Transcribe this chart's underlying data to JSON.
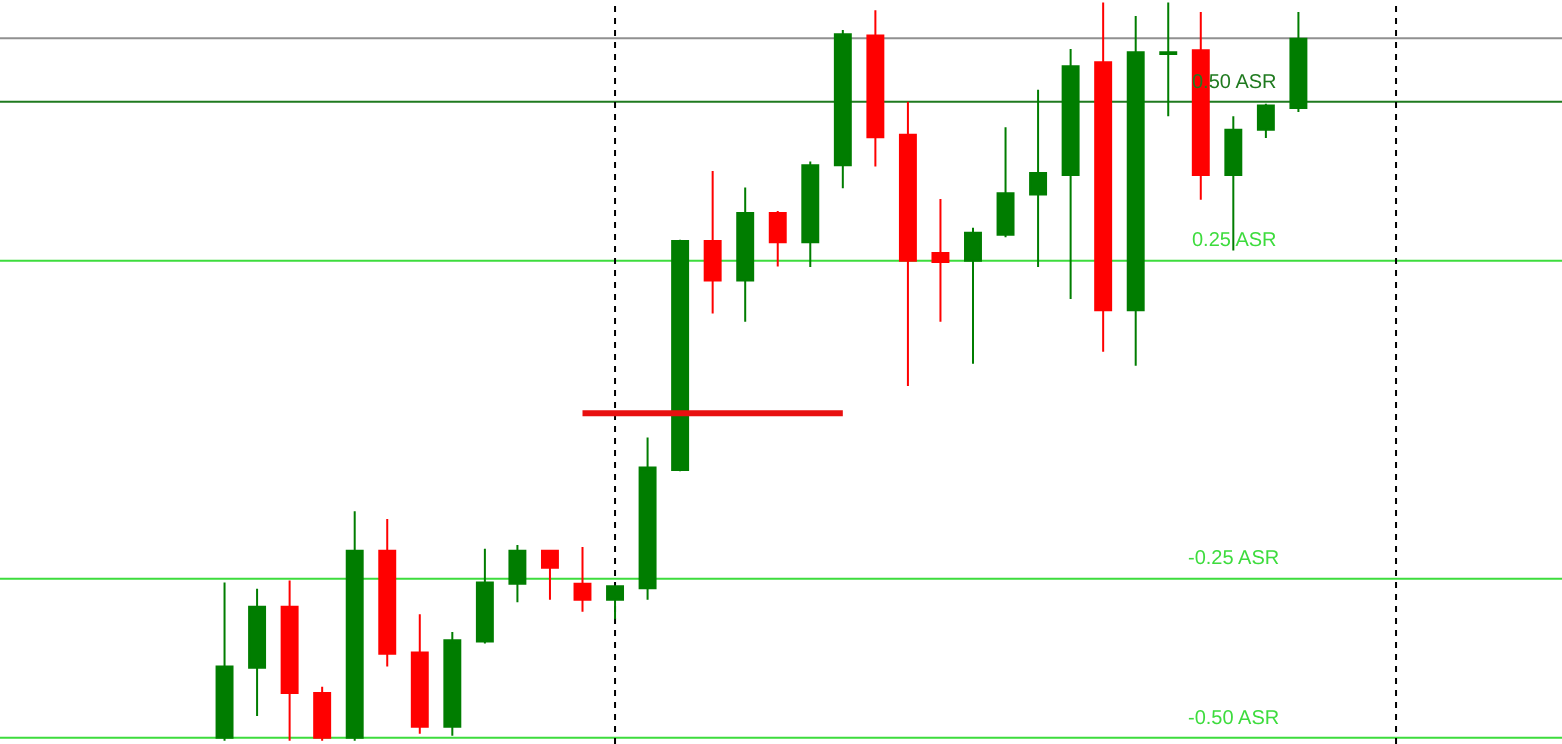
{
  "chart_data": {
    "type": "candlestick",
    "categories": [
      null,
      null,
      null,
      null,
      null,
      null,
      null,
      null,
      null,
      null,
      null,
      null,
      null,
      null,
      null,
      null,
      null,
      null,
      null,
      null,
      null,
      null,
      null,
      null,
      null,
      null,
      null,
      null,
      null,
      null,
      null,
      null,
      null,
      null
    ],
    "ohlc": [
      [
        -0.5,
        -0.256,
        -0.505,
        -0.388
      ],
      [
        -0.39,
        -0.266,
        -0.466,
        -0.294
      ],
      [
        -0.294,
        -0.253,
        -0.505,
        -0.43
      ],
      [
        -0.43,
        -0.42,
        -0.505,
        -0.5
      ],
      [
        -0.5,
        -0.144,
        -0.505,
        -0.206
      ],
      [
        -0.206,
        -0.156,
        -0.388,
        -0.368
      ],
      [
        -0.366,
        -0.306,
        -0.494,
        -0.483
      ],
      [
        -0.483,
        -0.334,
        -0.497,
        -0.347
      ],
      [
        -0.349,
        -0.203,
        -0.352,
        -0.256
      ],
      [
        -0.258,
        -0.197,
        -0.287,
        -0.206
      ],
      [
        -0.206,
        -0.206,
        -0.283,
        -0.233
      ],
      [
        -0.258,
        -0.2,
        -0.302,
        -0.283
      ],
      [
        -0.283,
        -0.262,
        -0.314,
        -0.262
      ],
      [
        -0.265,
        -0.028,
        -0.283,
        -0.075
      ],
      [
        -0.079,
        0.283,
        -0.081,
        0.281
      ],
      [
        0.281,
        0.391,
        0.167,
        0.219
      ],
      [
        0.219,
        0.365,
        0.154,
        0.325
      ],
      [
        0.325,
        0.328,
        0.241,
        0.279
      ],
      [
        0.279,
        0.406,
        0.24,
        0.4
      ],
      [
        0.4,
        0.613,
        0.364,
        0.606
      ],
      [
        0.604,
        0.644,
        0.398,
        0.444
      ],
      [
        0.448,
        0.5,
        0.053,
        0.25
      ],
      [
        0.262,
        0.347,
        0.154,
        0.248
      ],
      [
        0.25,
        0.302,
        0.088,
        0.294
      ],
      [
        0.291,
        0.46,
        0.287,
        0.356
      ],
      [
        0.354,
        0.519,
        0.24,
        0.388
      ],
      [
        0.385,
        0.583,
        0.19,
        0.556
      ],
      [
        0.562,
        0.656,
        0.107,
        0.172
      ],
      [
        0.172,
        0.635,
        0.085,
        0.578
      ],
      [
        0.575,
        0.656,
        0.477,
        0.578
      ],
      [
        0.581,
        0.641,
        0.346,
        0.385
      ],
      [
        0.385,
        0.477,
        0.266,
        0.456
      ],
      [
        0.456,
        0.497,
        0.443,
        0.494
      ],
      [
        0.49,
        0.641,
        0.484,
        0.599
      ]
    ],
    "series": [
      {
        "type": "line",
        "color": "#e81010",
        "values": [
          null,
          null,
          null,
          null,
          null,
          null,
          null,
          null,
          null,
          null,
          null,
          0.01,
          0.01,
          0.01,
          0.01,
          0.01,
          0.01,
          0.01,
          0.01,
          0.01,
          null,
          null,
          null,
          null,
          null,
          null,
          null,
          null,
          null,
          null,
          null,
          null,
          null,
          null
        ]
      }
    ],
    "ylim": [
      -0.51,
      0.66
    ],
    "ref_lines": [
      {
        "axis": "y",
        "value": 0.6,
        "label": null,
        "color": "#909090"
      },
      {
        "axis": "y",
        "value": 0.5,
        "label": "0.50 ASR",
        "color": "#1f7a1f"
      },
      {
        "axis": "y",
        "value": 0.25,
        "label": "0.25 ASR",
        "color": "#3ddc3d"
      },
      {
        "axis": "y",
        "value": -0.25,
        "label": "-0.25 ASR",
        "color": "#3ddc3d"
      },
      {
        "axis": "y",
        "value": -0.5,
        "label": "-0.50 ASR",
        "color": "#3ddc3d"
      }
    ],
    "line_style": "solid"
  }
}
